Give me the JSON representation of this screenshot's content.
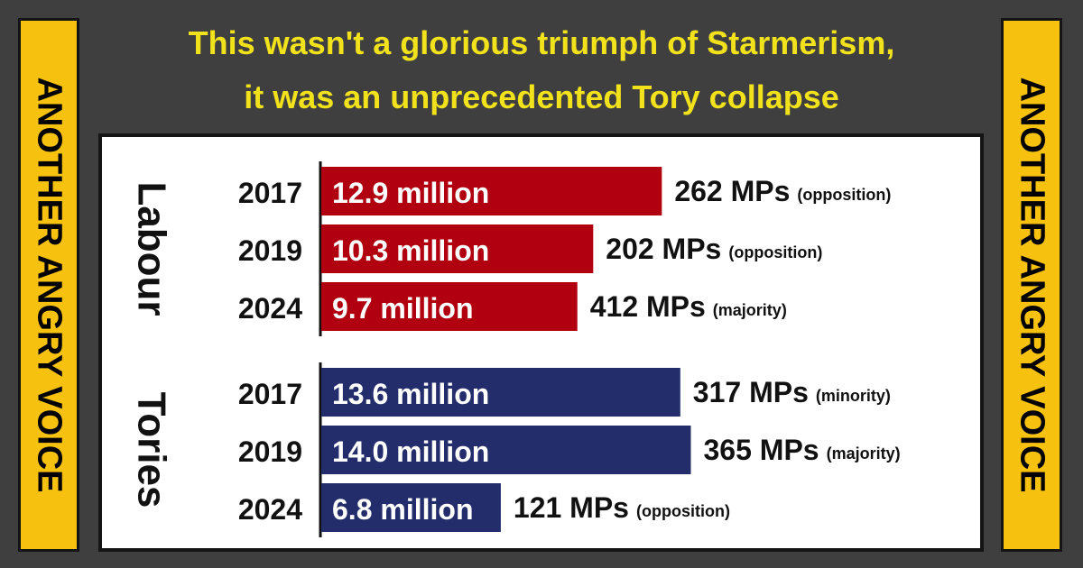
{
  "banner": {
    "left_text": "ANOTHER ANGRY VOICE",
    "right_text": "ANOTHER ANGRY VOICE"
  },
  "headline": {
    "line1": "This wasn't a glorious triumph of Starmerism,",
    "line2": "it was an unprecedented Tory collapse"
  },
  "colors": {
    "background": "#3f3f3f",
    "banner": "#f7c20f",
    "headline": "#f2e21b",
    "labour": "#b1000f",
    "tories": "#232d6b"
  },
  "chart_data": {
    "type": "bar",
    "orientation": "horizontal",
    "unit": "votes (millions)",
    "groups": [
      {
        "name": "Labour",
        "color": "#b1000f",
        "rows": [
          {
            "year": "2017",
            "votes": 12.9,
            "votes_label": "12.9 million",
            "mps_label": "262 MPs",
            "status": "(opposition)"
          },
          {
            "year": "2019",
            "votes": 10.3,
            "votes_label": "10.3 million",
            "mps_label": "202 MPs",
            "status": "(opposition)"
          },
          {
            "year": "2024",
            "votes": 9.7,
            "votes_label": "9.7 million",
            "mps_label": "412 MPs",
            "status": "(majority)"
          }
        ]
      },
      {
        "name": "Tories",
        "color": "#232d6b",
        "rows": [
          {
            "year": "2017",
            "votes": 13.6,
            "votes_label": "13.6 million",
            "mps_label": "317 MPs",
            "status": "(minority)"
          },
          {
            "year": "2019",
            "votes": 14.0,
            "votes_label": "14.0 million",
            "mps_label": "365 MPs",
            "status": "(majority)"
          },
          {
            "year": "2024",
            "votes": 6.8,
            "votes_label": "6.8 million",
            "mps_label": "121 MPs",
            "status": "(opposition)"
          }
        ]
      }
    ]
  }
}
